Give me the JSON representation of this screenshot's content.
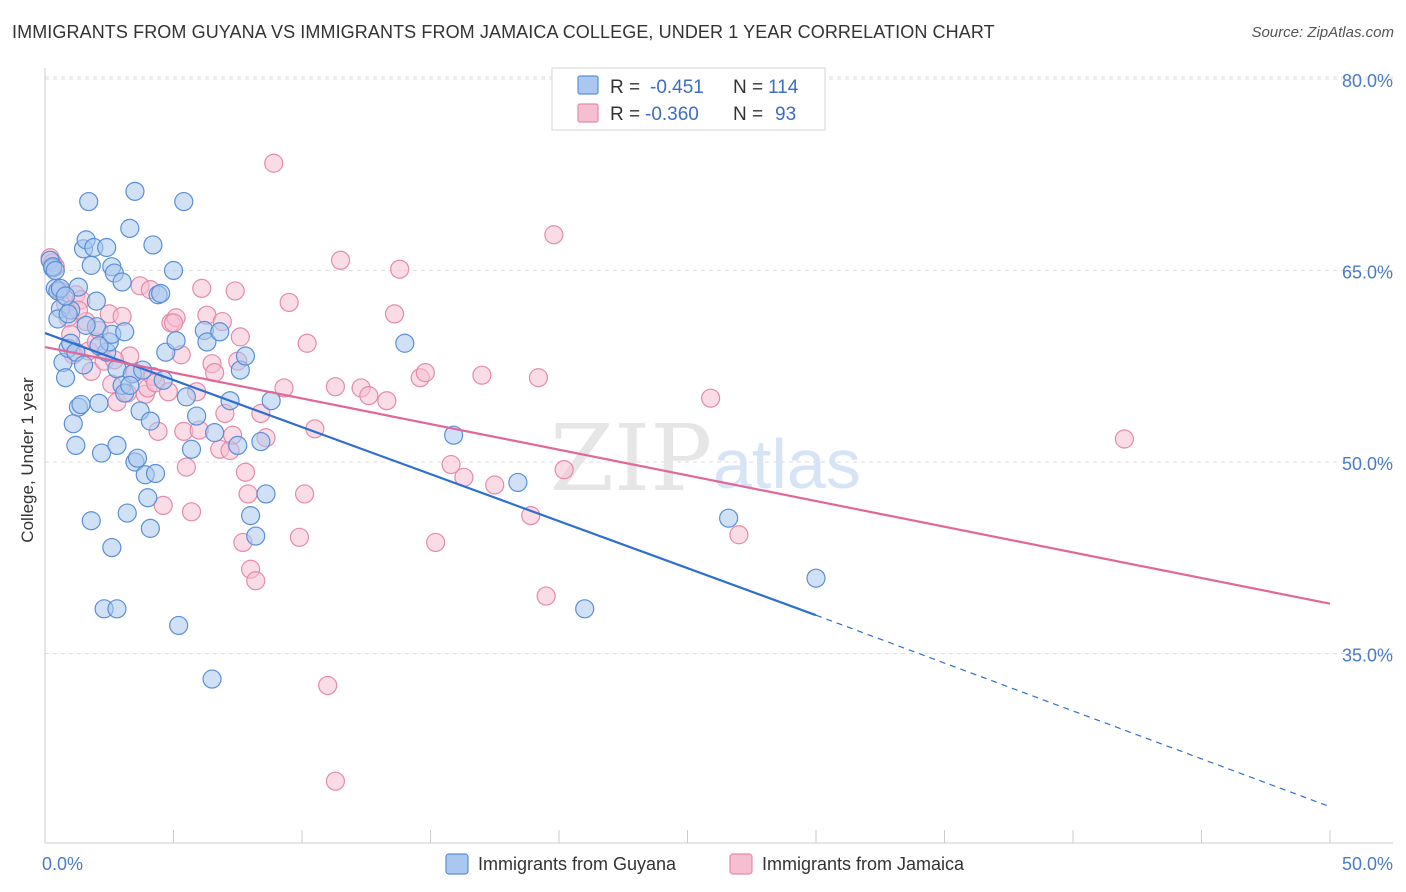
{
  "title": "IMMIGRANTS FROM GUYANA VS IMMIGRANTS FROM JAMAICA COLLEGE, UNDER 1 YEAR CORRELATION CHART",
  "source": "Source: ZipAtlas.com",
  "watermark": {
    "zip": "ZIP",
    "atlas": "atlas"
  },
  "colors": {
    "guyana_fill": "#aac8ef",
    "guyana_stroke": "#5a8fd8",
    "guyana_line": "#2f6fd0",
    "jamaica_fill": "#f6bfd1",
    "jamaica_stroke": "#e58aab",
    "jamaica_line": "#e0679a",
    "tick_text": "#4a7bc8",
    "grid": "#dddddd"
  },
  "legend": {
    "rows": [
      {
        "r_label": "R =",
        "r_value": "-0.451",
        "n_label": "N =",
        "n_value": "114"
      },
      {
        "r_label": "R =",
        "r_value": "-0.360",
        "n_label": "N =",
        "n_value": "93"
      }
    ]
  },
  "bottom_legend": [
    "Immigrants from Guyana",
    "Immigrants from Jamaica"
  ],
  "chart_data": {
    "type": "scatter",
    "xlabel": "",
    "ylabel": "College, Under 1 year",
    "xlim": [
      0,
      50
    ],
    "ylim": [
      20,
      85
    ],
    "x_tick_labels": [
      "0.0%",
      "50.0%"
    ],
    "y_ticks": [
      35,
      50,
      65,
      80
    ],
    "y_tick_labels": [
      "35.0%",
      "50.0%",
      "65.0%",
      "80.0%"
    ],
    "grid": "horizontal dashed",
    "legend_position": "top-center",
    "series": [
      {
        "name": "Immigrants from Guyana",
        "r": -0.451,
        "n": 114,
        "trend": {
          "x": [
            0,
            30
          ],
          "y": [
            60.1,
            38.0
          ],
          "dashed_to": [
            50,
            23.0
          ]
        },
        "points": [
          [
            0.2,
            65.8
          ],
          [
            0.3,
            65.2
          ],
          [
            0.4,
            63.6
          ],
          [
            0.5,
            63.4
          ],
          [
            0.6,
            62.0
          ],
          [
            0.5,
            61.2
          ],
          [
            0.7,
            57.8
          ],
          [
            0.8,
            56.6
          ],
          [
            0.9,
            58.9
          ],
          [
            1.0,
            59.3
          ],
          [
            1.0,
            61.9
          ],
          [
            1.1,
            53.0
          ],
          [
            1.2,
            51.3
          ],
          [
            1.3,
            54.3
          ],
          [
            1.4,
            54.5
          ],
          [
            1.3,
            63.7
          ],
          [
            1.5,
            66.7
          ],
          [
            1.6,
            67.4
          ],
          [
            1.7,
            70.4
          ],
          [
            1.8,
            65.4
          ],
          [
            1.9,
            66.8
          ],
          [
            2.0,
            62.6
          ],
          [
            2.0,
            60.6
          ],
          [
            2.1,
            54.6
          ],
          [
            2.2,
            50.7
          ],
          [
            1.8,
            45.4
          ],
          [
            2.4,
            58.6
          ],
          [
            2.5,
            59.4
          ],
          [
            2.6,
            60.0
          ],
          [
            2.4,
            66.8
          ],
          [
            2.6,
            65.3
          ],
          [
            2.7,
            64.8
          ],
          [
            2.8,
            57.3
          ],
          [
            2.6,
            43.3
          ],
          [
            2.3,
            38.5
          ],
          [
            2.8,
            38.5
          ],
          [
            2.8,
            51.3
          ],
          [
            3.0,
            64.1
          ],
          [
            3.1,
            60.2
          ],
          [
            3.0,
            56.0
          ],
          [
            3.1,
            55.4
          ],
          [
            3.2,
            46.0
          ],
          [
            3.3,
            68.3
          ],
          [
            3.5,
            71.2
          ],
          [
            3.4,
            56.9
          ],
          [
            3.5,
            50.0
          ],
          [
            3.6,
            50.3
          ],
          [
            3.7,
            54.0
          ],
          [
            3.8,
            57.2
          ],
          [
            3.9,
            49.0
          ],
          [
            4.0,
            47.2
          ],
          [
            4.1,
            44.8
          ],
          [
            4.1,
            53.2
          ],
          [
            4.2,
            67.0
          ],
          [
            4.3,
            49.1
          ],
          [
            4.4,
            63.1
          ],
          [
            4.5,
            63.2
          ],
          [
            4.6,
            56.4
          ],
          [
            4.7,
            58.6
          ],
          [
            5.0,
            65.0
          ],
          [
            5.1,
            59.5
          ],
          [
            5.2,
            37.2
          ],
          [
            5.4,
            70.4
          ],
          [
            5.5,
            55.1
          ],
          [
            5.7,
            51.0
          ],
          [
            5.9,
            53.6
          ],
          [
            6.2,
            60.3
          ],
          [
            6.3,
            59.4
          ],
          [
            6.5,
            33.0
          ],
          [
            6.6,
            52.3
          ],
          [
            6.8,
            60.2
          ],
          [
            7.2,
            54.8
          ],
          [
            7.5,
            51.3
          ],
          [
            7.6,
            57.2
          ],
          [
            7.8,
            58.3
          ],
          [
            8.0,
            45.8
          ],
          [
            8.2,
            44.2
          ],
          [
            8.4,
            51.6
          ],
          [
            8.6,
            47.5
          ],
          [
            8.8,
            54.8
          ],
          [
            14.0,
            59.3
          ],
          [
            15.9,
            52.1
          ],
          [
            18.4,
            48.4
          ],
          [
            21.0,
            38.5
          ],
          [
            26.6,
            45.6
          ],
          [
            30.0,
            40.9
          ],
          [
            0.3,
            65.3
          ],
          [
            0.6,
            63.6
          ],
          [
            0.9,
            61.6
          ],
          [
            1.2,
            58.6
          ],
          [
            2.1,
            59.1
          ],
          [
            3.3,
            56.0
          ],
          [
            0.4,
            65.0
          ],
          [
            1.5,
            57.6
          ],
          [
            0.8,
            63.0
          ],
          [
            1.6,
            60.7
          ]
        ]
      },
      {
        "name": "Immigrants from Jamaica",
        "r": -0.36,
        "n": 93,
        "trend": {
          "x": [
            0,
            50
          ],
          "y": [
            59.0,
            38.9
          ]
        },
        "points": [
          [
            0.2,
            66.0
          ],
          [
            0.4,
            65.3
          ],
          [
            0.6,
            63.4
          ],
          [
            0.8,
            62.4
          ],
          [
            0.9,
            61.3
          ],
          [
            1.0,
            60.0
          ],
          [
            1.1,
            58.4
          ],
          [
            1.2,
            63.1
          ],
          [
            1.4,
            62.7
          ],
          [
            1.6,
            61.0
          ],
          [
            1.7,
            58.7
          ],
          [
            1.8,
            57.1
          ],
          [
            2.0,
            59.4
          ],
          [
            2.1,
            60.3
          ],
          [
            2.3,
            57.9
          ],
          [
            2.5,
            61.6
          ],
          [
            2.6,
            56.1
          ],
          [
            2.8,
            54.7
          ],
          [
            3.0,
            61.4
          ],
          [
            3.2,
            55.4
          ],
          [
            3.3,
            58.3
          ],
          [
            3.5,
            57.0
          ],
          [
            3.7,
            63.8
          ],
          [
            3.9,
            55.3
          ],
          [
            4.0,
            55.8
          ],
          [
            4.1,
            63.5
          ],
          [
            4.2,
            56.7
          ],
          [
            4.3,
            56.2
          ],
          [
            4.4,
            52.4
          ],
          [
            4.6,
            46.6
          ],
          [
            4.8,
            55.5
          ],
          [
            4.9,
            60.9
          ],
          [
            5.1,
            61.3
          ],
          [
            5.3,
            58.4
          ],
          [
            5.4,
            52.4
          ],
          [
            5.5,
            49.6
          ],
          [
            5.7,
            46.1
          ],
          [
            5.9,
            55.5
          ],
          [
            6.0,
            52.5
          ],
          [
            6.1,
            63.6
          ],
          [
            6.3,
            61.5
          ],
          [
            6.5,
            57.7
          ],
          [
            6.6,
            57.0
          ],
          [
            6.8,
            51.0
          ],
          [
            7.0,
            53.8
          ],
          [
            7.2,
            50.9
          ],
          [
            7.3,
            52.1
          ],
          [
            7.4,
            63.4
          ],
          [
            7.5,
            57.9
          ],
          [
            7.6,
            59.8
          ],
          [
            7.7,
            43.7
          ],
          [
            7.8,
            49.2
          ],
          [
            7.9,
            47.5
          ],
          [
            8.0,
            41.6
          ],
          [
            8.2,
            40.7
          ],
          [
            8.4,
            53.8
          ],
          [
            8.6,
            51.9
          ],
          [
            8.9,
            73.4
          ],
          [
            9.3,
            55.8
          ],
          [
            9.5,
            62.5
          ],
          [
            9.9,
            44.1
          ],
          [
            10.1,
            47.5
          ],
          [
            10.2,
            59.3
          ],
          [
            10.5,
            52.6
          ],
          [
            11.0,
            32.5
          ],
          [
            11.3,
            55.9
          ],
          [
            11.5,
            65.8
          ],
          [
            12.3,
            55.8
          ],
          [
            12.6,
            55.2
          ],
          [
            13.3,
            54.8
          ],
          [
            13.6,
            61.6
          ],
          [
            13.8,
            65.1
          ],
          [
            14.6,
            56.6
          ],
          [
            14.8,
            57.0
          ],
          [
            15.2,
            43.7
          ],
          [
            15.8,
            49.8
          ],
          [
            16.3,
            48.8
          ],
          [
            17.0,
            56.8
          ],
          [
            17.5,
            48.2
          ],
          [
            18.9,
            45.8
          ],
          [
            19.2,
            56.6
          ],
          [
            19.5,
            39.5
          ],
          [
            19.8,
            67.8
          ],
          [
            20.2,
            49.4
          ],
          [
            25.9,
            55.0
          ],
          [
            27.0,
            44.3
          ],
          [
            42.0,
            51.8
          ],
          [
            11.3,
            25.0
          ],
          [
            0.3,
            65.6
          ],
          [
            1.3,
            61.9
          ],
          [
            2.7,
            58.0
          ],
          [
            5.0,
            60.9
          ],
          [
            6.9,
            61.0
          ]
        ]
      }
    ]
  }
}
